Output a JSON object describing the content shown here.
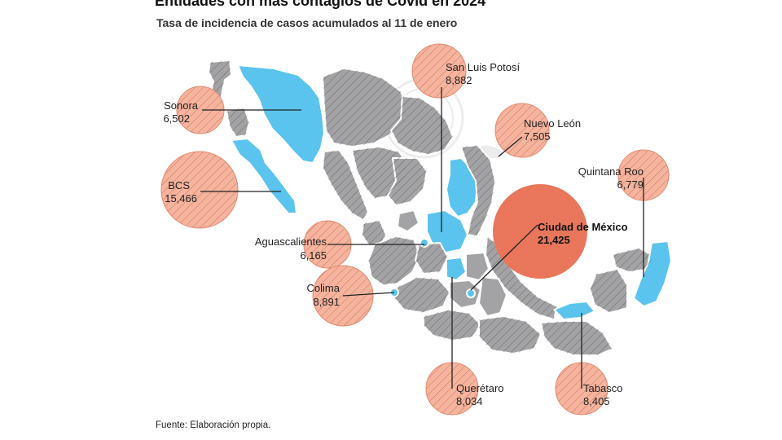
{
  "title": "Entidades con más contagios de Covid en 2024",
  "subtitle": "Tasa de incidencia de casos acumulados al 11 de enero",
  "source": "Fuente: Elaboración propia.",
  "colors": {
    "state_gray": "#a3a3a5",
    "state_blue": "#5ac4ee",
    "bubble": "#f6b49e",
    "bubble_stroke": "#e48a6f",
    "bubble_max": "#ea765b",
    "hatch": "#444444"
  },
  "states": [
    {
      "name": "Sonora",
      "value": "6,502"
    },
    {
      "name": "BCS",
      "value": "15,466"
    },
    {
      "name": "Aguascalientes",
      "value": "6,165"
    },
    {
      "name": "Colima",
      "value": "8,891"
    },
    {
      "name": "San Luis Potosí",
      "value": "8,882"
    },
    {
      "name": "Nuevo León",
      "value": "7,505"
    },
    {
      "name": "Quintana Roo",
      "value": "6,779"
    },
    {
      "name": "Ciudad de México",
      "value": "21,425"
    },
    {
      "name": "Querétaro",
      "value": "8,034"
    },
    {
      "name": "Tabasco",
      "value": "8,405"
    }
  ]
}
